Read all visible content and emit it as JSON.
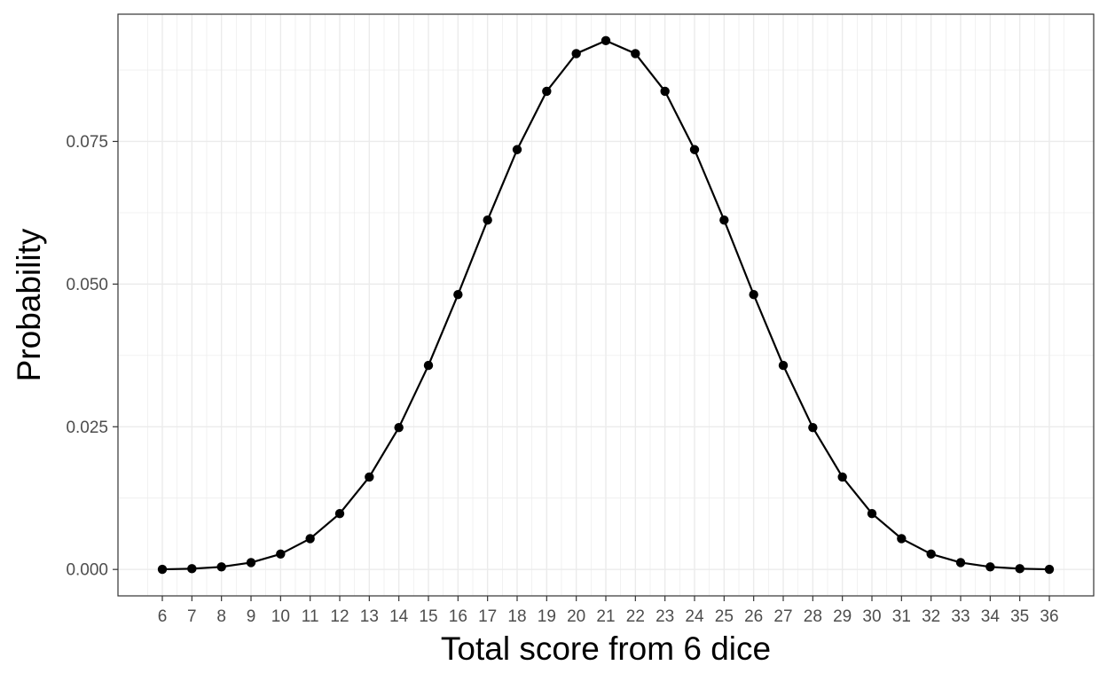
{
  "chart_data": {
    "type": "line",
    "title": "",
    "xlabel": "Total score from 6 dice",
    "ylabel": "Probability",
    "x": [
      6,
      7,
      8,
      9,
      10,
      11,
      12,
      13,
      14,
      15,
      16,
      17,
      18,
      19,
      20,
      21,
      22,
      23,
      24,
      25,
      26,
      27,
      28,
      29,
      30,
      31,
      32,
      33,
      34,
      35,
      36
    ],
    "series": [
      {
        "values": [
          2.14e-05,
          0.0001286,
          0.0004501,
          0.0012003,
          0.0027006,
          0.0054012,
          0.0097865,
          0.0162037,
          0.0248628,
          0.035751,
          0.048161,
          0.061214,
          0.0735597,
          0.0837877,
          0.0903894,
          0.0926612,
          0.0903894,
          0.0837877,
          0.0735597,
          0.061214,
          0.048161,
          0.035751,
          0.0248628,
          0.0162037,
          0.0097865,
          0.0054012,
          0.0027006,
          0.0012003,
          0.0004501,
          0.0001286,
          2.14e-05
        ]
      }
    ],
    "xlim": [
      4.5,
      37.5
    ],
    "ylim": [
      -0.004633,
      0.097294
    ],
    "y_ticks": [
      0,
      0.025,
      0.05,
      0.075
    ],
    "y_tick_labels": [
      "0.000",
      "0.025",
      "0.050",
      "0.075"
    ],
    "x_tick_labels": [
      "6",
      "7",
      "8",
      "9",
      "10",
      "11",
      "12",
      "13",
      "14",
      "15",
      "16",
      "17",
      "18",
      "19",
      "20",
      "21",
      "22",
      "23",
      "24",
      "25",
      "26",
      "27",
      "28",
      "29",
      "30",
      "31",
      "32",
      "33",
      "34",
      "35",
      "36"
    ],
    "grid": true,
    "legend": "none",
    "colors": {
      "line": "#000000",
      "points": "#000000",
      "grid": "#ebebeb",
      "panel_border": "#333333",
      "tick_text": "#4d4d4d"
    }
  }
}
